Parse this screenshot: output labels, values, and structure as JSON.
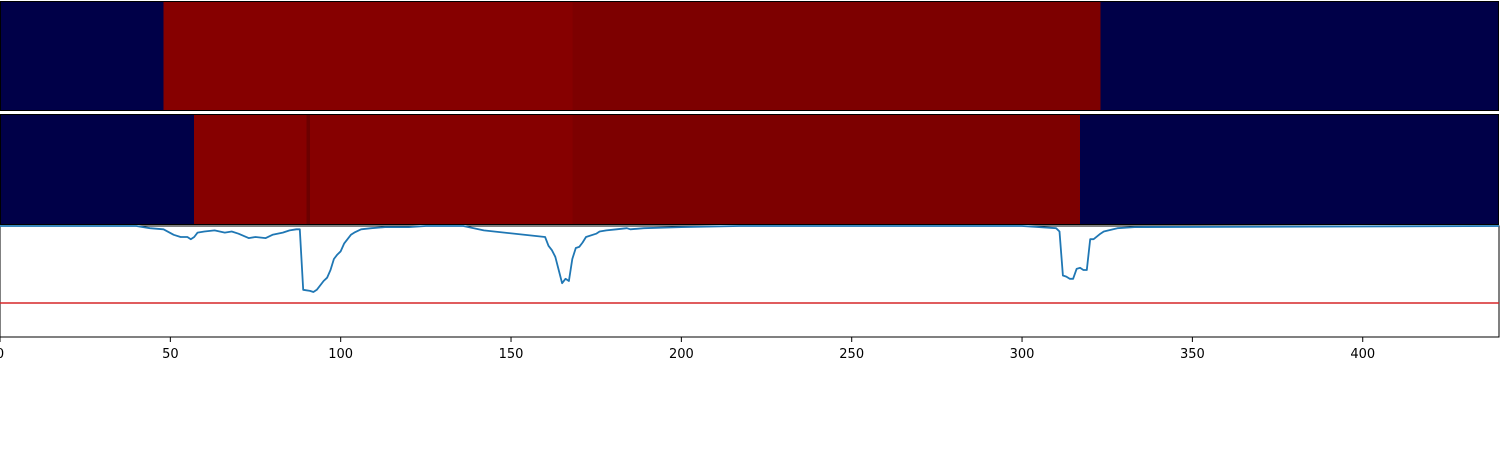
{
  "chart_data": {
    "type": "heatmap",
    "xlim": [
      0,
      440
    ],
    "x_ticks": [
      0,
      50,
      100,
      150,
      200,
      250,
      300,
      350,
      400
    ],
    "x_tick_labels": [
      "0",
      "50",
      "100",
      "150",
      "200",
      "250",
      "300",
      "350",
      "400"
    ],
    "colors": {
      "low": "#000048",
      "high_a": "#860000",
      "high_b": "#7d0000",
      "edge": "#6c0000",
      "line": "#1f77b4",
      "threshold": "#d62728"
    },
    "rows": [
      {
        "segments": [
          {
            "x0": 0,
            "x1": 48,
            "level": "low"
          },
          {
            "x0": 48,
            "x1": 168,
            "level": "high_a"
          },
          {
            "x0": 168,
            "x1": 323,
            "level": "high_b"
          },
          {
            "x0": 323,
            "x1": 440,
            "level": "low"
          }
        ]
      },
      {
        "segments": [
          {
            "x0": 0,
            "x1": 57,
            "level": "low"
          },
          {
            "x0": 57,
            "x1": 90,
            "level": "high_a"
          },
          {
            "x0": 90,
            "x1": 91,
            "level": "edge"
          },
          {
            "x0": 91,
            "x1": 168,
            "level": "high_a"
          },
          {
            "x0": 168,
            "x1": 317,
            "level": "high_b"
          },
          {
            "x0": 317,
            "x1": 440,
            "level": "low"
          }
        ]
      }
    ],
    "line_series": {
      "ylim": [
        -1,
        0
      ],
      "threshold": -0.7,
      "x": [
        0,
        40,
        44,
        48,
        51,
        53,
        55,
        56,
        57,
        58,
        60,
        63,
        66,
        68,
        70,
        73,
        75,
        78,
        80,
        83,
        85,
        87,
        88,
        89,
        91,
        92,
        93,
        95,
        96,
        97,
        98,
        99,
        100,
        101,
        103,
        104,
        106,
        109,
        113,
        120,
        125,
        135,
        136,
        142,
        160,
        161,
        162,
        163,
        164,
        165,
        166,
        167,
        168,
        169,
        170,
        171,
        172,
        175,
        176,
        178,
        181,
        184,
        185,
        189,
        200,
        217,
        300,
        310,
        311,
        312,
        313,
        314,
        315,
        316,
        317,
        318,
        319,
        320,
        321,
        323,
        324,
        328,
        333,
        440
      ],
      "y": [
        0,
        0,
        -0.02,
        -0.03,
        -0.08,
        -0.1,
        -0.1,
        -0.12,
        -0.1,
        -0.06,
        -0.05,
        -0.04,
        -0.06,
        -0.05,
        -0.07,
        -0.11,
        -0.1,
        -0.11,
        -0.08,
        -0.06,
        -0.04,
        -0.03,
        -0.03,
        -0.58,
        -0.59,
        -0.6,
        -0.58,
        -0.5,
        -0.47,
        -0.4,
        -0.3,
        -0.26,
        -0.23,
        -0.16,
        -0.08,
        -0.06,
        -0.03,
        -0.02,
        -0.01,
        -0.01,
        0,
        0,
        0,
        -0.04,
        -0.1,
        -0.18,
        -0.22,
        -0.28,
        -0.4,
        -0.52,
        -0.48,
        -0.5,
        -0.3,
        -0.2,
        -0.19,
        -0.15,
        -0.1,
        -0.07,
        -0.05,
        -0.04,
        -0.03,
        -0.02,
        -0.03,
        -0.02,
        -0.01,
        0,
        0,
        -0.02,
        -0.05,
        -0.45,
        -0.46,
        -0.48,
        -0.48,
        -0.39,
        -0.38,
        -0.4,
        -0.4,
        -0.12,
        -0.12,
        -0.07,
        -0.05,
        -0.02,
        -0.01,
        0
      ]
    }
  }
}
